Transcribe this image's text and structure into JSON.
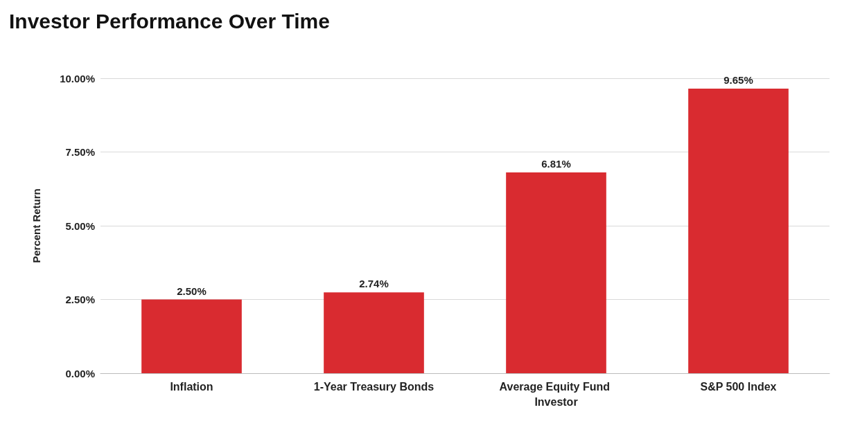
{
  "chart_data": {
    "type": "bar",
    "title": "Investor Performance Over Time",
    "ylabel": "Percent Return",
    "categories": [
      "Inflation",
      "1-Year Treasury Bonds",
      "Average Equity Fund Investor",
      "S&P 500 Index"
    ],
    "values": [
      2.5,
      2.74,
      6.81,
      9.65
    ],
    "value_labels": [
      "2.50%",
      "2.74%",
      "6.81%",
      "9.65%"
    ],
    "color": "#d92b30",
    "ylim": [
      0,
      10
    ],
    "yticks": [
      {
        "value": 0,
        "label": "0.00%"
      },
      {
        "value": 2.5,
        "label": "2.50%"
      },
      {
        "value": 5,
        "label": "5.00%"
      },
      {
        "value": 7.5,
        "label": "7.50%"
      },
      {
        "value": 10,
        "label": "10.00%"
      }
    ],
    "grid": "y"
  }
}
